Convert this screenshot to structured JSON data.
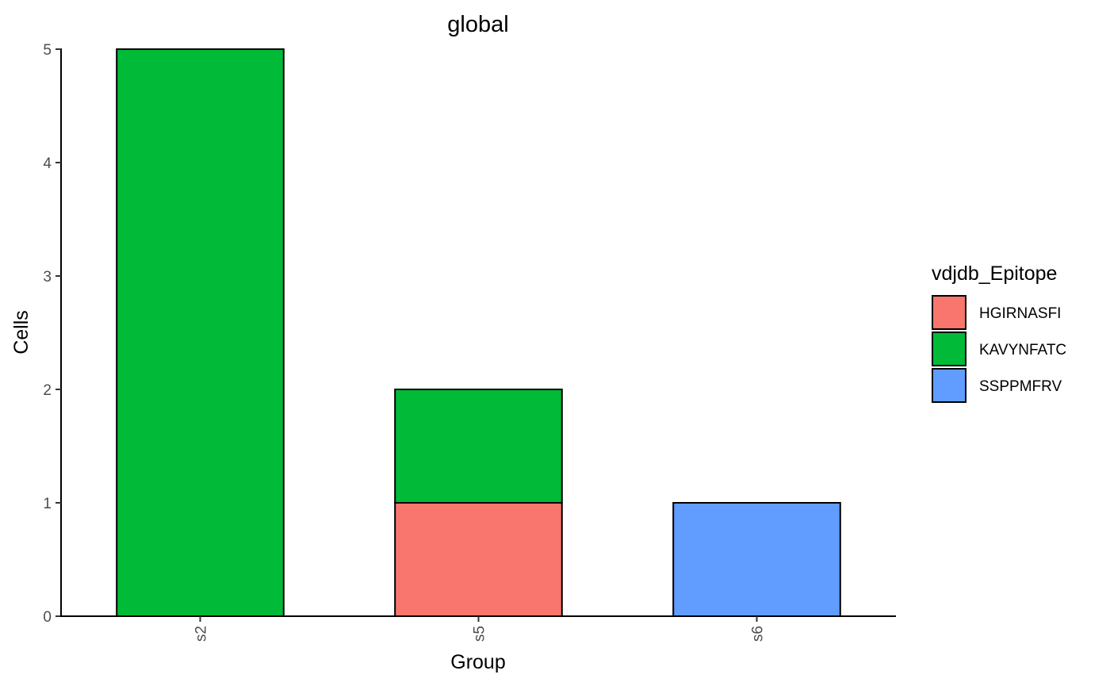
{
  "chart_data": {
    "type": "bar",
    "stacked": true,
    "title": "global",
    "xlabel": "Group",
    "ylabel": "Cells",
    "categories": [
      "s2",
      "s5",
      "s6"
    ],
    "ylim": [
      0,
      5
    ],
    "yticks": [
      0,
      1,
      2,
      3,
      4,
      5
    ],
    "grid": false,
    "legend_title": "vdjdb_Epitope",
    "legend_position": "right",
    "series": [
      {
        "name": "HGIRNASFI",
        "color": "#F8766D",
        "values": [
          0,
          1,
          0
        ]
      },
      {
        "name": "KAVYNFATC",
        "color": "#00BA38",
        "values": [
          5,
          1,
          0
        ]
      },
      {
        "name": "SSPPMFRV",
        "color": "#619CFF",
        "values": [
          0,
          0,
          1
        ]
      }
    ]
  }
}
